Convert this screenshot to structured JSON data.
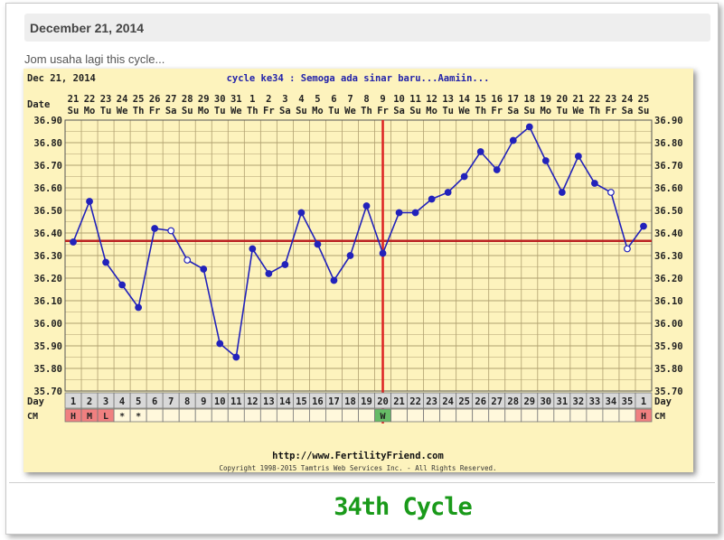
{
  "post": {
    "date_heading": "December 21, 2014",
    "text": "Jom usaha lagi this cycle...",
    "caption": "34th Cycle"
  },
  "chart_data": {
    "type": "line",
    "header_date": "Dec 21, 2014",
    "title": "cycle ke34 : Semoga ada sinar baru...Aamiin...",
    "date_label": "Date",
    "day_label": "Day",
    "cm_label": "CM",
    "ylim": [
      35.7,
      36.9
    ],
    "y_ticks": [
      "36.90",
      "36.80",
      "36.70",
      "36.60",
      "36.50",
      "36.40",
      "36.30",
      "36.20",
      "36.10",
      "36.00",
      "35.90",
      "35.80",
      "35.70"
    ],
    "dates": [
      "21",
      "22",
      "23",
      "24",
      "25",
      "26",
      "27",
      "28",
      "29",
      "30",
      "31",
      "1",
      "2",
      "3",
      "4",
      "5",
      "6",
      "7",
      "8",
      "9",
      "10",
      "11",
      "12",
      "13",
      "14",
      "15",
      "16",
      "17",
      "18",
      "19",
      "20",
      "21",
      "22",
      "23",
      "24",
      "25"
    ],
    "weekdays": [
      "Su",
      "Mo",
      "Tu",
      "We",
      "Th",
      "Fr",
      "Sa",
      "Su",
      "Mo",
      "Tu",
      "We",
      "Th",
      "Fr",
      "Sa",
      "Su",
      "Mo",
      "Tu",
      "We",
      "Th",
      "Fr",
      "Sa",
      "Su",
      "Mo",
      "Tu",
      "We",
      "Th",
      "Fr",
      "Sa",
      "Su",
      "Mo",
      "Tu",
      "We",
      "Th",
      "Fr",
      "Sa",
      "Su"
    ],
    "days": [
      "1",
      "2",
      "3",
      "4",
      "5",
      "6",
      "7",
      "8",
      "9",
      "10",
      "11",
      "12",
      "13",
      "14",
      "15",
      "16",
      "17",
      "18",
      "19",
      "20",
      "21",
      "22",
      "23",
      "24",
      "25",
      "26",
      "27",
      "28",
      "29",
      "30",
      "31",
      "32",
      "33",
      "34",
      "35",
      "1"
    ],
    "cm": [
      "H",
      "M",
      "L",
      "*",
      "*",
      "",
      "",
      "",
      "",
      "",
      "",
      "",
      "",
      "",
      "",
      "",
      "",
      "",
      "",
      "W",
      "",
      "",
      "",
      "",
      "",
      "",
      "",
      "",
      "",
      "",
      "",
      "",
      "",
      "",
      "",
      "H"
    ],
    "cm_colors": {
      "H": "#f08080",
      "M": "#f08080",
      "L": "#f08080",
      "W": "#66bb66"
    },
    "temps": [
      36.36,
      36.54,
      36.27,
      36.17,
      36.07,
      36.42,
      36.41,
      36.28,
      36.24,
      35.91,
      35.85,
      36.33,
      36.22,
      36.26,
      36.49,
      36.35,
      36.19,
      36.3,
      36.52,
      36.31,
      36.49,
      36.49,
      36.55,
      36.58,
      36.65,
      36.76,
      36.68,
      36.81,
      36.87,
      36.72,
      36.58,
      36.74,
      36.62,
      36.58,
      36.33,
      36.43
    ],
    "open_points": [
      6,
      7,
      33,
      34
    ],
    "coverline": 36.365,
    "ovulation_day": 20,
    "url": "http://www.FertilityFriend.com",
    "copyright": "Copyright 1998-2015 Tamtris Web Services Inc. - All Rights Reserved.",
    "colors": {
      "background": "#fdf3bd",
      "grid": "#b0a070",
      "line": "#2222bb",
      "coverline": "#bb2222",
      "ovulation": "#dd2222",
      "title": "#2222aa"
    }
  }
}
